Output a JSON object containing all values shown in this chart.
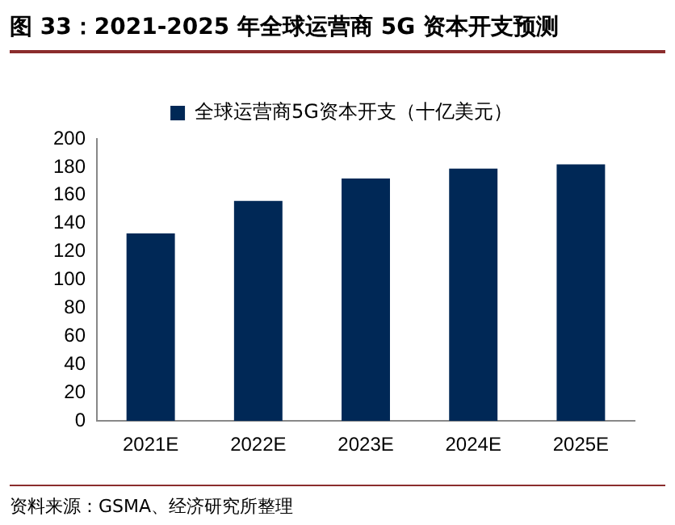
{
  "chart_data": {
    "type": "bar",
    "title": "图 33：2021-2025 年全球运营商 5G 资本开支预测",
    "categories": [
      "2021E",
      "2022E",
      "2023E",
      "2024E",
      "2025E"
    ],
    "series": [
      {
        "name": "全球运营商5G资本开支（十亿美元）",
        "color": "#002856",
        "values": [
          133,
          156,
          172,
          179,
          182
        ]
      }
    ],
    "ylim": [
      0,
      200
    ],
    "yticks": [
      0,
      20,
      40,
      60,
      80,
      100,
      120,
      140,
      160,
      180,
      200
    ],
    "grid": false,
    "legend": "top",
    "annotations": [
      "资料来源：GSMA、经济研究所整理"
    ]
  }
}
